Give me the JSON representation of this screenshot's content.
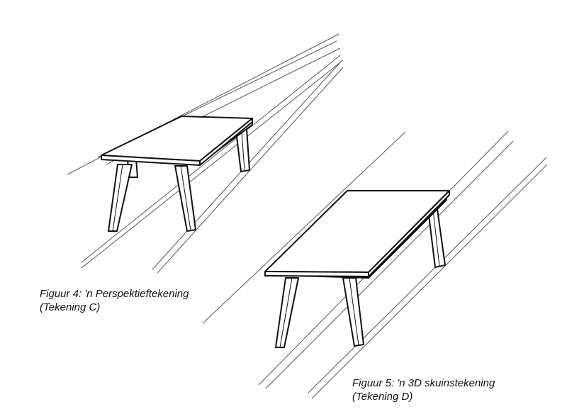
{
  "figures": [
    {
      "caption_line1": "Figuur 4: 'n Perspektieftekening",
      "caption_line2": "(Tekening C)"
    },
    {
      "caption_line1": "Figuur 5: 'n 3D skuinstekening",
      "caption_line2": "(Tekening D)"
    }
  ],
  "colors": {
    "ink": "#111111",
    "construction": "#555555",
    "background": "#ffffff"
  }
}
